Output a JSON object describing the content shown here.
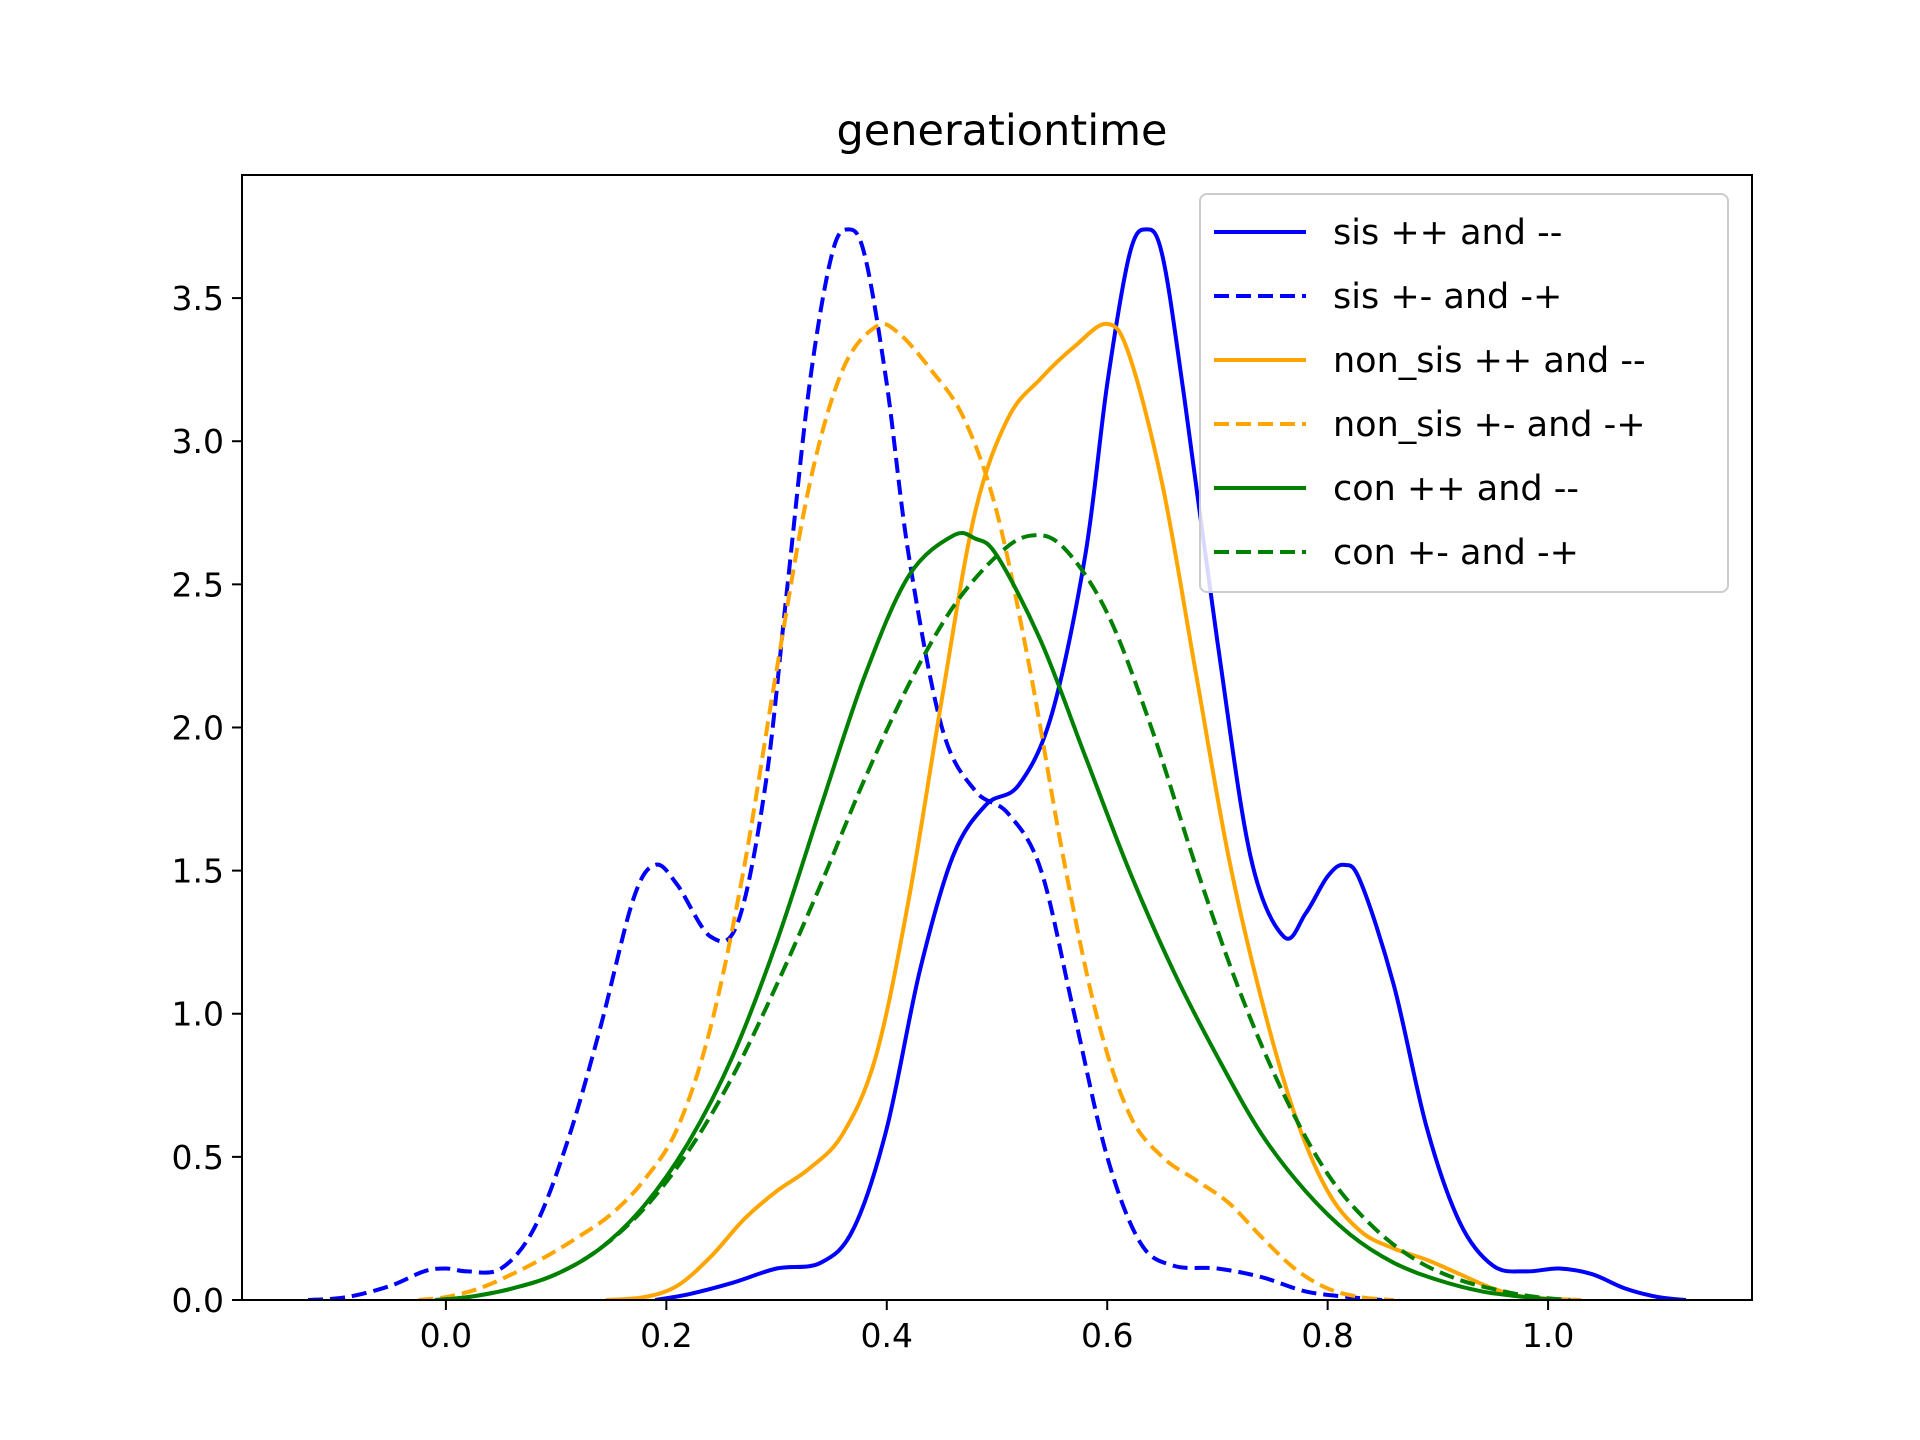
{
  "chart_data": {
    "type": "line",
    "title": "generationtime",
    "xlabel": "",
    "ylabel": "",
    "xlim": [
      -0.185,
      1.185
    ],
    "ylim": [
      0,
      3.93
    ],
    "x_ticks": [
      0.0,
      0.2,
      0.4,
      0.6,
      0.8,
      1.0
    ],
    "x_tick_labels": [
      "0.0",
      "0.2",
      "0.4",
      "0.6",
      "0.8",
      "1.0"
    ],
    "y_ticks": [
      0.0,
      0.5,
      1.0,
      1.5,
      2.0,
      2.5,
      3.0,
      3.5
    ],
    "y_tick_labels": [
      "0.0",
      "0.5",
      "1.0",
      "1.5",
      "2.0",
      "2.5",
      "3.0",
      "3.5"
    ],
    "grid": false,
    "legend_position": "upper-right",
    "series": [
      {
        "name": "sis ++ and --",
        "color": "#0000ff",
        "dash": "solid",
        "points": [
          [
            0.19,
            0.0
          ],
          [
            0.22,
            0.02
          ],
          [
            0.26,
            0.06
          ],
          [
            0.3,
            0.11
          ],
          [
            0.34,
            0.13
          ],
          [
            0.37,
            0.25
          ],
          [
            0.4,
            0.6
          ],
          [
            0.43,
            1.15
          ],
          [
            0.46,
            1.55
          ],
          [
            0.49,
            1.73
          ],
          [
            0.52,
            1.8
          ],
          [
            0.55,
            2.05
          ],
          [
            0.58,
            2.6
          ],
          [
            0.6,
            3.2
          ],
          [
            0.62,
            3.65
          ],
          [
            0.635,
            3.74
          ],
          [
            0.65,
            3.65
          ],
          [
            0.67,
            3.15
          ],
          [
            0.7,
            2.3
          ],
          [
            0.73,
            1.55
          ],
          [
            0.76,
            1.27
          ],
          [
            0.78,
            1.35
          ],
          [
            0.8,
            1.48
          ],
          [
            0.815,
            1.52
          ],
          [
            0.83,
            1.46
          ],
          [
            0.86,
            1.1
          ],
          [
            0.89,
            0.6
          ],
          [
            0.92,
            0.27
          ],
          [
            0.95,
            0.12
          ],
          [
            0.98,
            0.1
          ],
          [
            1.01,
            0.11
          ],
          [
            1.04,
            0.09
          ],
          [
            1.07,
            0.04
          ],
          [
            1.1,
            0.01
          ],
          [
            1.125,
            0.0
          ]
        ]
      },
      {
        "name": "sis +- and -+",
        "color": "#0000ff",
        "dash": "dashed",
        "points": [
          [
            -0.125,
            0.0
          ],
          [
            -0.09,
            0.01
          ],
          [
            -0.05,
            0.05
          ],
          [
            -0.02,
            0.1
          ],
          [
            0.0,
            0.11
          ],
          [
            0.02,
            0.1
          ],
          [
            0.05,
            0.11
          ],
          [
            0.08,
            0.25
          ],
          [
            0.11,
            0.55
          ],
          [
            0.14,
            0.95
          ],
          [
            0.17,
            1.4
          ],
          [
            0.19,
            1.52
          ],
          [
            0.21,
            1.45
          ],
          [
            0.24,
            1.27
          ],
          [
            0.265,
            1.32
          ],
          [
            0.29,
            1.8
          ],
          [
            0.31,
            2.5
          ],
          [
            0.33,
            3.2
          ],
          [
            0.35,
            3.65
          ],
          [
            0.365,
            3.74
          ],
          [
            0.38,
            3.65
          ],
          [
            0.4,
            3.2
          ],
          [
            0.42,
            2.6
          ],
          [
            0.45,
            2.0
          ],
          [
            0.48,
            1.78
          ],
          [
            0.51,
            1.7
          ],
          [
            0.54,
            1.5
          ],
          [
            0.57,
            1.0
          ],
          [
            0.6,
            0.5
          ],
          [
            0.63,
            0.2
          ],
          [
            0.66,
            0.12
          ],
          [
            0.7,
            0.11
          ],
          [
            0.74,
            0.08
          ],
          [
            0.78,
            0.03
          ],
          [
            0.82,
            0.01
          ],
          [
            0.85,
            0.0
          ]
        ]
      },
      {
        "name": "non_sis ++ and --",
        "color": "#ffa500",
        "dash": "solid",
        "points": [
          [
            0.145,
            0.0
          ],
          [
            0.18,
            0.01
          ],
          [
            0.21,
            0.05
          ],
          [
            0.24,
            0.15
          ],
          [
            0.27,
            0.28
          ],
          [
            0.3,
            0.38
          ],
          [
            0.33,
            0.46
          ],
          [
            0.36,
            0.58
          ],
          [
            0.39,
            0.85
          ],
          [
            0.42,
            1.4
          ],
          [
            0.45,
            2.1
          ],
          [
            0.48,
            2.75
          ],
          [
            0.51,
            3.08
          ],
          [
            0.54,
            3.22
          ],
          [
            0.57,
            3.33
          ],
          [
            0.6,
            3.41
          ],
          [
            0.62,
            3.3
          ],
          [
            0.65,
            2.85
          ],
          [
            0.68,
            2.2
          ],
          [
            0.71,
            1.55
          ],
          [
            0.74,
            1.05
          ],
          [
            0.77,
            0.65
          ],
          [
            0.8,
            0.38
          ],
          [
            0.83,
            0.24
          ],
          [
            0.86,
            0.18
          ],
          [
            0.89,
            0.14
          ],
          [
            0.92,
            0.09
          ],
          [
            0.95,
            0.04
          ],
          [
            0.98,
            0.01
          ],
          [
            1.03,
            0.0
          ]
        ]
      },
      {
        "name": "non_sis +- and -+",
        "color": "#ffa500",
        "dash": "dashed",
        "points": [
          [
            -0.025,
            0.0
          ],
          [
            0.0,
            0.01
          ],
          [
            0.03,
            0.04
          ],
          [
            0.06,
            0.09
          ],
          [
            0.09,
            0.15
          ],
          [
            0.12,
            0.22
          ],
          [
            0.15,
            0.3
          ],
          [
            0.18,
            0.42
          ],
          [
            0.21,
            0.6
          ],
          [
            0.24,
            0.95
          ],
          [
            0.27,
            1.5
          ],
          [
            0.3,
            2.2
          ],
          [
            0.33,
            2.85
          ],
          [
            0.36,
            3.25
          ],
          [
            0.39,
            3.4
          ],
          [
            0.41,
            3.38
          ],
          [
            0.44,
            3.25
          ],
          [
            0.47,
            3.08
          ],
          [
            0.5,
            2.75
          ],
          [
            0.53,
            2.2
          ],
          [
            0.56,
            1.55
          ],
          [
            0.59,
            1.0
          ],
          [
            0.62,
            0.65
          ],
          [
            0.65,
            0.5
          ],
          [
            0.68,
            0.42
          ],
          [
            0.71,
            0.34
          ],
          [
            0.74,
            0.22
          ],
          [
            0.77,
            0.11
          ],
          [
            0.8,
            0.04
          ],
          [
            0.83,
            0.01
          ],
          [
            0.86,
            0.0
          ]
        ]
      },
      {
        "name": "con ++ and --",
        "color": "#008000",
        "dash": "solid",
        "points": [
          [
            -0.01,
            0.0
          ],
          [
            0.02,
            0.01
          ],
          [
            0.06,
            0.04
          ],
          [
            0.1,
            0.09
          ],
          [
            0.14,
            0.18
          ],
          [
            0.18,
            0.33
          ],
          [
            0.22,
            0.55
          ],
          [
            0.26,
            0.85
          ],
          [
            0.3,
            1.25
          ],
          [
            0.34,
            1.72
          ],
          [
            0.38,
            2.18
          ],
          [
            0.42,
            2.53
          ],
          [
            0.46,
            2.67
          ],
          [
            0.48,
            2.66
          ],
          [
            0.5,
            2.6
          ],
          [
            0.54,
            2.3
          ],
          [
            0.58,
            1.9
          ],
          [
            0.62,
            1.5
          ],
          [
            0.66,
            1.15
          ],
          [
            0.7,
            0.85
          ],
          [
            0.74,
            0.58
          ],
          [
            0.78,
            0.38
          ],
          [
            0.82,
            0.23
          ],
          [
            0.86,
            0.13
          ],
          [
            0.9,
            0.07
          ],
          [
            0.94,
            0.03
          ],
          [
            0.98,
            0.01
          ],
          [
            1.01,
            0.0
          ]
        ]
      },
      {
        "name": "con +- and -+",
        "color": "#008000",
        "dash": "dashed",
        "points": [
          [
            -0.01,
            0.0
          ],
          [
            0.02,
            0.01
          ],
          [
            0.06,
            0.04
          ],
          [
            0.1,
            0.09
          ],
          [
            0.14,
            0.18
          ],
          [
            0.18,
            0.32
          ],
          [
            0.22,
            0.52
          ],
          [
            0.26,
            0.78
          ],
          [
            0.3,
            1.1
          ],
          [
            0.34,
            1.45
          ],
          [
            0.38,
            1.82
          ],
          [
            0.42,
            2.15
          ],
          [
            0.46,
            2.42
          ],
          [
            0.5,
            2.6
          ],
          [
            0.53,
            2.67
          ],
          [
            0.56,
            2.63
          ],
          [
            0.6,
            2.4
          ],
          [
            0.64,
            2.0
          ],
          [
            0.68,
            1.52
          ],
          [
            0.72,
            1.08
          ],
          [
            0.76,
            0.72
          ],
          [
            0.8,
            0.44
          ],
          [
            0.84,
            0.26
          ],
          [
            0.88,
            0.14
          ],
          [
            0.92,
            0.07
          ],
          [
            0.96,
            0.03
          ],
          [
            0.99,
            0.01
          ],
          [
            1.02,
            0.0
          ]
        ]
      }
    ]
  }
}
